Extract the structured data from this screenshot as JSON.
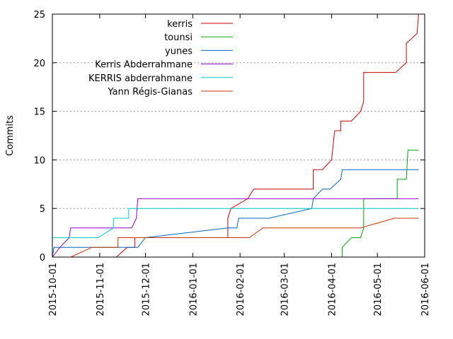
{
  "chart_data": {
    "type": "line",
    "title": "",
    "xlabel": "",
    "ylabel": "Commits",
    "ylim": [
      0,
      25
    ],
    "xlim": [
      "2015-10-01",
      "2016-06-01"
    ],
    "grid": "horizontal dotted",
    "legend_position": "top-left",
    "y_ticks": [
      "0",
      "5",
      "10",
      "15",
      "20",
      "25"
    ],
    "x_ticks": [
      "2015-10-01",
      "2015-11-01",
      "2015-12-01",
      "2016-01-01",
      "2016-02-01",
      "2016-03-01",
      "2016-04-01",
      "2016-05-01",
      "2016-06-01"
    ],
    "series": [
      {
        "name": "kerris",
        "color": "#cc0000",
        "points": [
          [
            "2015-11-12",
            0
          ],
          [
            "2015-11-19",
            1
          ],
          [
            "2015-11-24",
            1
          ],
          [
            "2015-11-24",
            2
          ],
          [
            "2015-12-28",
            2
          ],
          [
            "2016-01-24",
            2
          ],
          [
            "2016-01-24",
            3
          ],
          [
            "2016-01-24",
            4
          ],
          [
            "2016-01-26",
            5
          ],
          [
            "2016-02-06",
            6
          ],
          [
            "2016-02-10",
            7
          ],
          [
            "2016-03-20",
            7
          ],
          [
            "2016-03-20",
            8
          ],
          [
            "2016-03-20",
            9
          ],
          [
            "2016-03-26",
            9
          ],
          [
            "2016-04-01",
            10
          ],
          [
            "2016-04-03",
            13
          ],
          [
            "2016-04-07",
            13
          ],
          [
            "2016-04-07",
            14
          ],
          [
            "2016-04-14",
            14
          ],
          [
            "2016-04-20",
            15
          ],
          [
            "2016-04-22",
            16
          ],
          [
            "2016-04-22",
            19
          ],
          [
            "2016-05-13",
            19
          ],
          [
            "2016-05-20",
            20
          ],
          [
            "2016-05-20",
            22
          ],
          [
            "2016-05-27",
            23
          ],
          [
            "2016-05-28",
            25
          ]
        ]
      },
      {
        "name": "tounsi",
        "color": "#00aa00",
        "points": [
          [
            "2016-04-08",
            0
          ],
          [
            "2016-04-08",
            1
          ],
          [
            "2016-04-14",
            2
          ],
          [
            "2016-04-20",
            2
          ],
          [
            "2016-04-22",
            3
          ],
          [
            "2016-04-22",
            6
          ],
          [
            "2016-05-14",
            6
          ],
          [
            "2016-05-14",
            8
          ],
          [
            "2016-05-20",
            8
          ],
          [
            "2016-05-21",
            11
          ],
          [
            "2016-05-28",
            11
          ]
        ]
      },
      {
        "name": "yunes",
        "color": "#0066cc",
        "points": [
          [
            "2015-10-01",
            0
          ],
          [
            "2015-10-02",
            1
          ],
          [
            "2015-11-26",
            1
          ],
          [
            "2015-12-01",
            2
          ],
          [
            "2016-01-24",
            3
          ],
          [
            "2016-01-30",
            3
          ],
          [
            "2016-01-31",
            4
          ],
          [
            "2016-02-20",
            4
          ],
          [
            "2016-03-19",
            5
          ],
          [
            "2016-03-20",
            6
          ],
          [
            "2016-03-26",
            7
          ],
          [
            "2016-03-31",
            7
          ],
          [
            "2016-04-07",
            8
          ],
          [
            "2016-04-08",
            9
          ],
          [
            "2016-05-28",
            9
          ]
        ]
      },
      {
        "name": "Kerris Abderrahmane",
        "color": "#9900cc",
        "points": [
          [
            "2015-10-01",
            0
          ],
          [
            "2015-10-06",
            1
          ],
          [
            "2015-10-12",
            2
          ],
          [
            "2015-10-13",
            3
          ],
          [
            "2015-11-22",
            3
          ],
          [
            "2015-11-25",
            4
          ],
          [
            "2015-11-26",
            6
          ],
          [
            "2016-05-28",
            6
          ]
        ]
      },
      {
        "name": "KERRIS abderrahmane",
        "color": "#00cccc",
        "points": [
          [
            "2015-10-01",
            0
          ],
          [
            "2015-10-01",
            2
          ],
          [
            "2015-10-31",
            2
          ],
          [
            "2015-11-10",
            3
          ],
          [
            "2015-11-10",
            4
          ],
          [
            "2015-11-20",
            4
          ],
          [
            "2015-11-20",
            5
          ],
          [
            "2016-05-28",
            5
          ]
        ]
      },
      {
        "name": "Yann Régis-Gianas",
        "color": "#cc3300",
        "points": [
          [
            "2015-10-13",
            0
          ],
          [
            "2015-10-27",
            1
          ],
          [
            "2015-11-13",
            1
          ],
          [
            "2015-11-13",
            2
          ],
          [
            "2016-01-24",
            2
          ],
          [
            "2016-02-07",
            2
          ],
          [
            "2016-02-16",
            3
          ],
          [
            "2016-04-20",
            3
          ],
          [
            "2016-05-12",
            4
          ],
          [
            "2016-05-28",
            4
          ]
        ]
      }
    ]
  }
}
